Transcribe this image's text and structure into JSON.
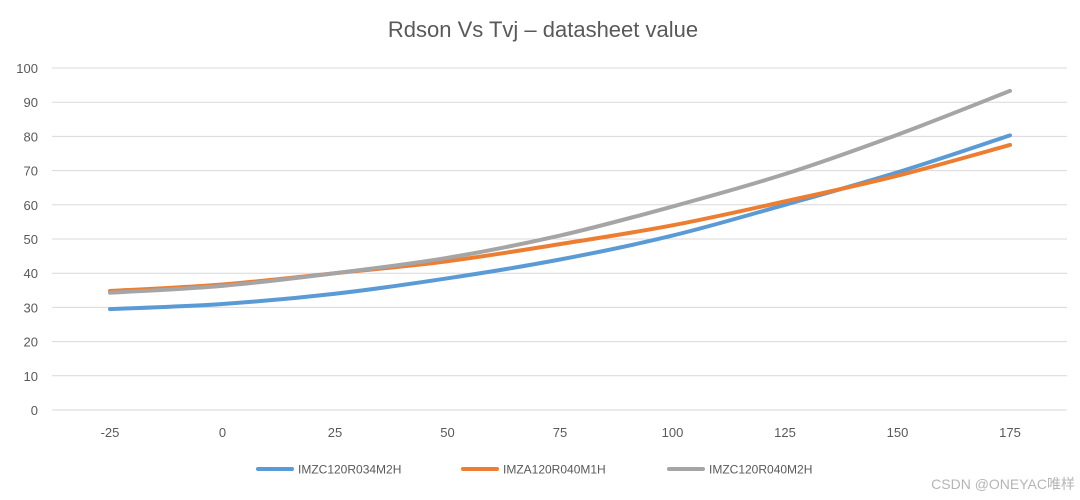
{
  "chart_data": {
    "type": "line",
    "title": "Rdson Vs Tvj – datasheet value",
    "xlabel": "",
    "ylabel": "",
    "x": [
      -25,
      0,
      25,
      50,
      75,
      100,
      125,
      150,
      175
    ],
    "ylim": [
      0,
      100
    ],
    "yticks": [
      0,
      10,
      20,
      30,
      40,
      50,
      60,
      70,
      80,
      90,
      100
    ],
    "grid": true,
    "legend_position": "bottom",
    "series": [
      {
        "name": "IMZC120R034M2H",
        "color": "#5b9bd5",
        "values": [
          29.5,
          31,
          34,
          38.5,
          44,
          51,
          60,
          69.5,
          80.3
        ]
      },
      {
        "name": "IMZA120R040M1H",
        "color": "#ed7d31",
        "values": [
          34.8,
          36.7,
          40,
          43.5,
          48.5,
          54,
          61,
          68.5,
          77.5
        ]
      },
      {
        "name": "IMZC120R040M2H",
        "color": "#a5a5a5",
        "values": [
          34.3,
          36.3,
          40,
          44.5,
          51,
          59.5,
          69,
          80.5,
          93.3
        ]
      }
    ]
  },
  "watermark": "CSDN @ONEYAC唯样"
}
